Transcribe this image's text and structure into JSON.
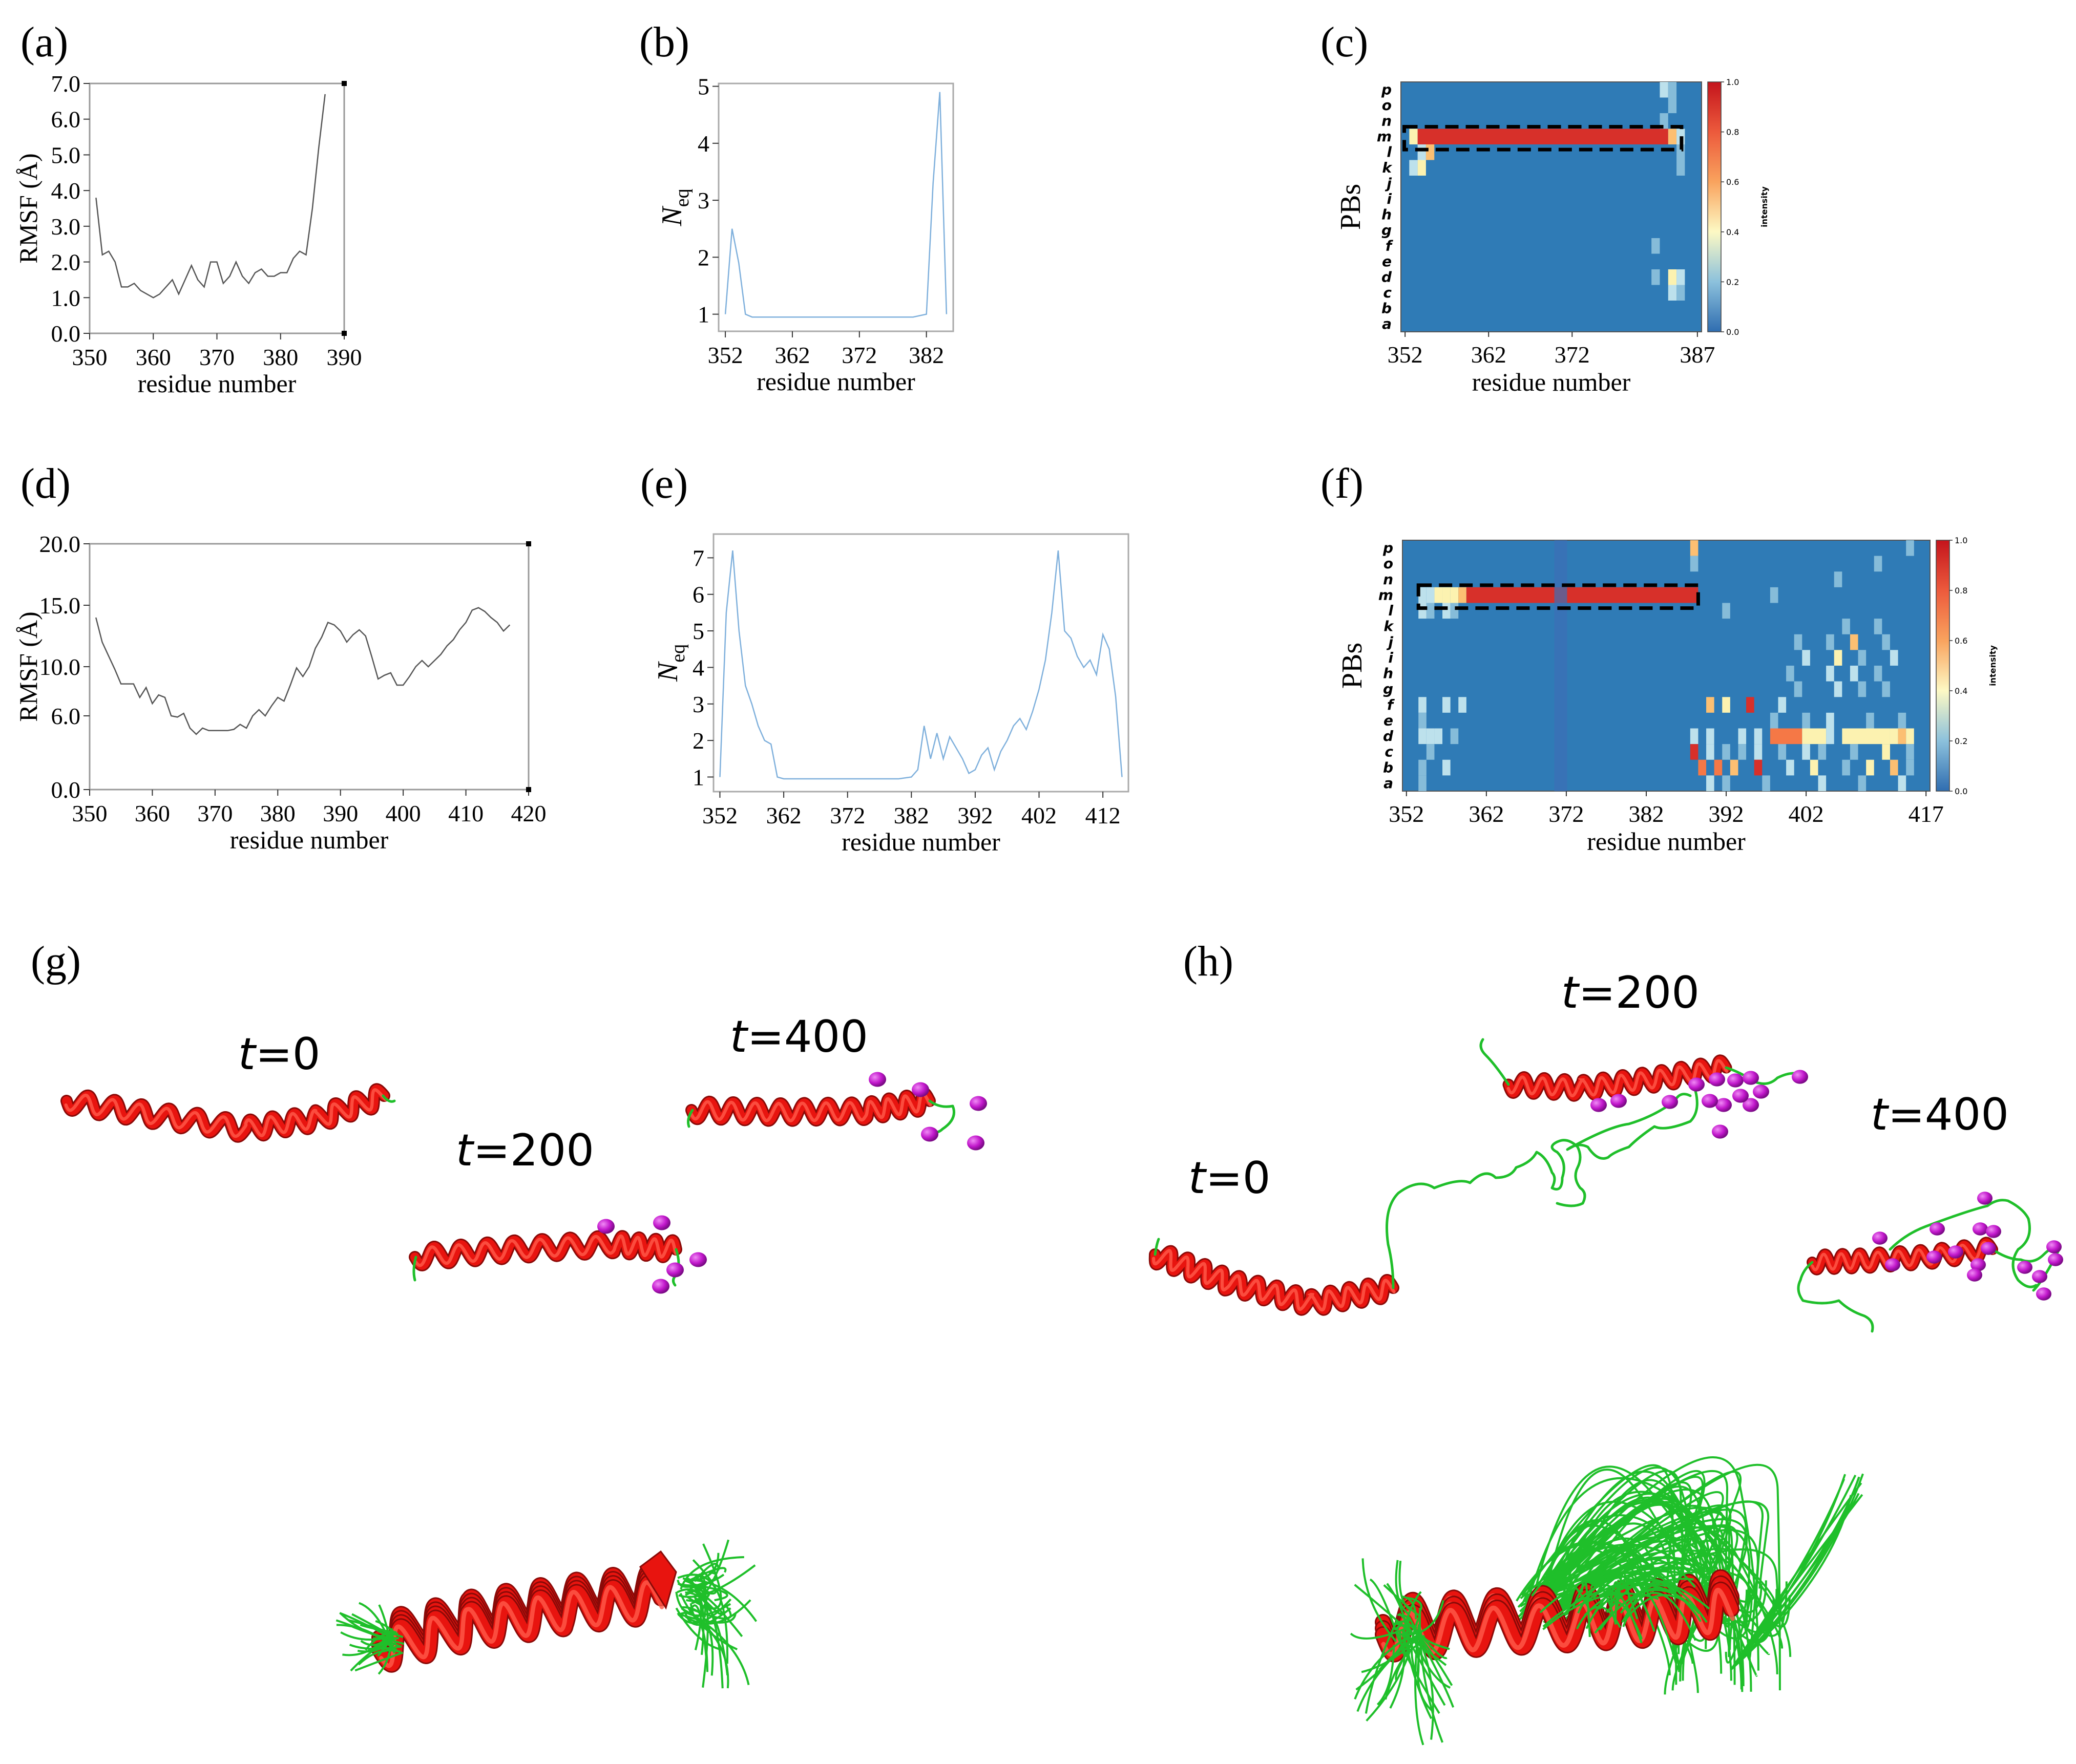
{
  "panels": {
    "a": {
      "letter": "(a)"
    },
    "b": {
      "letter": "(b)"
    },
    "c": {
      "letter": "(c)"
    },
    "d": {
      "letter": "(d)"
    },
    "e": {
      "letter": "(e)"
    },
    "f": {
      "letter": "(f)"
    },
    "g": {
      "letter": "(g)"
    },
    "h": {
      "letter": "(h)"
    }
  },
  "structures": {
    "g": {
      "t0": "0",
      "t200": "200",
      "t400": "400",
      "t_symbol": "t",
      "eq": "="
    },
    "h": {
      "t0": "0",
      "t200": "200",
      "t400": "400",
      "t_symbol": "t",
      "eq": "="
    }
  },
  "colors": {
    "helix": "#e8140f",
    "coil": "#1fbf2a",
    "ion": "#cc1ad6",
    "heat_bg": "#2f7bb6",
    "line_rmsf": "#555555",
    "line_neq": "#7fb0dc"
  },
  "chart_data": [
    {
      "id": "a",
      "type": "line",
      "xlabel": "residue number",
      "ylabel": "RMSF (Å)",
      "xlim": [
        350,
        390
      ],
      "ylim": [
        0,
        7
      ],
      "xticks": [
        "350",
        "360",
        "370",
        "380",
        "390"
      ],
      "yticks": [
        "0.0",
        "1.0",
        "2.0",
        "3.0",
        "4.0",
        "5.0",
        "6.0",
        "7.0"
      ],
      "x": [
        351,
        352,
        353,
        354,
        355,
        356,
        357,
        358,
        359,
        360,
        361,
        362,
        363,
        364,
        365,
        366,
        367,
        368,
        369,
        370,
        371,
        372,
        373,
        374,
        375,
        376,
        377,
        378,
        379,
        380,
        381,
        382,
        383,
        384,
        385,
        386,
        387
      ],
      "y": [
        3.8,
        2.2,
        2.3,
        2.0,
        1.3,
        1.3,
        1.4,
        1.2,
        1.1,
        1.0,
        1.1,
        1.3,
        1.5,
        1.1,
        1.5,
        1.9,
        1.5,
        1.3,
        2.0,
        2.0,
        1.4,
        1.6,
        2.0,
        1.6,
        1.4,
        1.7,
        1.8,
        1.6,
        1.6,
        1.7,
        1.7,
        2.1,
        2.3,
        2.2,
        3.5,
        5.2,
        6.7
      ]
    },
    {
      "id": "b",
      "type": "line",
      "xlabel": "residue number",
      "ylabel_main": "N",
      "ylabel_sub": "eq",
      "xlim": [
        351,
        386
      ],
      "ylim": [
        0.7,
        5.05
      ],
      "xticks": [
        "352",
        "362",
        "372",
        "382"
      ],
      "yticks": [
        "1",
        "2",
        "3",
        "4",
        "5"
      ],
      "x": [
        352,
        353,
        354,
        355,
        356,
        357,
        358,
        360,
        362,
        364,
        366,
        368,
        370,
        372,
        374,
        376,
        378,
        380,
        382,
        383,
        384,
        385
      ],
      "y": [
        1.0,
        2.5,
        1.9,
        1.0,
        0.95,
        0.95,
        0.95,
        0.95,
        0.95,
        0.95,
        0.95,
        0.95,
        0.95,
        0.95,
        0.95,
        0.95,
        0.95,
        0.95,
        1.0,
        3.3,
        4.9,
        1.0
      ]
    },
    {
      "id": "c",
      "type": "heatmap",
      "xlabel": "residue number",
      "ylabel": "PBs",
      "xticks": [
        "352",
        "362",
        "372",
        "387"
      ],
      "rows": [
        "p",
        "o",
        "n",
        "m",
        "l",
        "k",
        "j",
        "i",
        "h",
        "g",
        "f",
        "e",
        "d",
        "c",
        "b",
        "a"
      ],
      "colorbar_label": "intensity",
      "colorbar_ticks": [
        "0.0",
        "0.2",
        "0.4",
        "0.6",
        "0.8",
        "1.0"
      ]
    },
    {
      "id": "d",
      "type": "line",
      "xlabel": "residue number",
      "ylabel": "RMSF (Å)",
      "xlim": [
        350,
        420
      ],
      "ylim": [
        0,
        20
      ],
      "xticks": [
        "350",
        "360",
        "370",
        "380",
        "390",
        "400",
        "410",
        "420"
      ],
      "yticks": [
        "0.0",
        "6.0",
        "10.0",
        "15.0",
        "20.0"
      ],
      "x": [
        351,
        352,
        353,
        354,
        355,
        356,
        357,
        358,
        359,
        360,
        361,
        362,
        363,
        364,
        365,
        366,
        367,
        368,
        369,
        370,
        371,
        372,
        373,
        374,
        375,
        376,
        377,
        378,
        379,
        380,
        381,
        382,
        383,
        384,
        385,
        386,
        387,
        388,
        389,
        390,
        391,
        392,
        393,
        394,
        395,
        396,
        397,
        398,
        399,
        400,
        401,
        402,
        403,
        404,
        405,
        406,
        407,
        408,
        409,
        410,
        411,
        412,
        413,
        414,
        415,
        416,
        417
      ],
      "y": [
        14.0,
        12.0,
        10.9,
        9.8,
        8.6,
        8.6,
        8.6,
        7.5,
        8.3,
        7.0,
        7.7,
        7.5,
        6.0,
        5.9,
        6.2,
        5.0,
        4.5,
        5.0,
        4.8,
        4.8,
        4.8,
        4.8,
        4.9,
        5.3,
        5.0,
        6.0,
        6.5,
        6.0,
        6.8,
        7.5,
        7.2,
        8.5,
        9.9,
        9.2,
        10.0,
        11.5,
        12.4,
        13.6,
        13.4,
        12.9,
        12.0,
        12.6,
        13.0,
        12.5,
        10.8,
        9.0,
        9.3,
        9.5,
        8.5,
        8.5,
        9.2,
        10.0,
        10.5,
        10.0,
        10.5,
        11.0,
        11.7,
        12.2,
        13.0,
        13.6,
        14.6,
        14.8,
        14.5,
        14.0,
        13.6,
        12.9,
        13.4
      ]
    },
    {
      "id": "e",
      "type": "line",
      "xlabel": "residue number",
      "ylabel_main": "N",
      "ylabel_sub": "eq",
      "xlim": [
        351,
        416
      ],
      "ylim": [
        0.6,
        7.65
      ],
      "xticks": [
        "352",
        "362",
        "372",
        "382",
        "392",
        "402",
        "412"
      ],
      "yticks": [
        "1",
        "2",
        "3",
        "4",
        "5",
        "6",
        "7"
      ],
      "x": [
        352,
        353,
        354,
        355,
        356,
        357,
        358,
        359,
        360,
        361,
        362,
        364,
        366,
        368,
        370,
        372,
        374,
        376,
        378,
        380,
        382,
        383,
        384,
        385,
        386,
        387,
        388,
        389,
        390,
        391,
        392,
        393,
        394,
        395,
        396,
        397,
        398,
        399,
        400,
        401,
        402,
        403,
        404,
        405,
        406,
        407,
        408,
        409,
        410,
        411,
        412,
        413,
        414,
        415
      ],
      "y": [
        1.0,
        5.5,
        7.2,
        5.0,
        3.5,
        3.0,
        2.4,
        2.0,
        1.9,
        1.0,
        0.95,
        0.95,
        0.95,
        0.95,
        0.95,
        0.95,
        0.95,
        0.95,
        0.95,
        0.95,
        1.0,
        1.2,
        2.4,
        1.5,
        2.2,
        1.5,
        2.1,
        1.8,
        1.5,
        1.1,
        1.2,
        1.6,
        1.8,
        1.2,
        1.7,
        2.0,
        2.4,
        2.6,
        2.3,
        2.8,
        3.4,
        4.2,
        5.5,
        7.2,
        5.0,
        4.8,
        4.3,
        4.0,
        4.2,
        3.8,
        4.9,
        4.5,
        3.2,
        1.0
      ]
    },
    {
      "id": "f",
      "type": "heatmap",
      "xlabel": "residue number",
      "ylabel": "PBs",
      "xticks": [
        "352",
        "362",
        "372",
        "382",
        "392",
        "402",
        "417"
      ],
      "rows": [
        "p",
        "o",
        "n",
        "m",
        "l",
        "k",
        "j",
        "i",
        "h",
        "g",
        "f",
        "e",
        "d",
        "c",
        "b",
        "a"
      ],
      "colorbar_label": "intensity",
      "colorbar_ticks": [
        "0.0",
        "0.2",
        "0.4",
        "0.6",
        "0.8",
        "1.0"
      ]
    }
  ]
}
